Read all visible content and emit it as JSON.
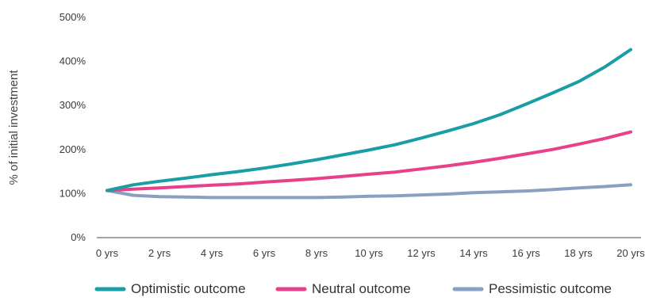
{
  "chart_data": {
    "type": "line",
    "ylabel": "% of initial investment",
    "xlabel": "",
    "ylim": [
      0,
      500
    ],
    "yticks": [
      0,
      100,
      200,
      300,
      400,
      500
    ],
    "ytick_labels": [
      "0%",
      "100%",
      "200%",
      "300%",
      "400%",
      "500%"
    ],
    "xticks": [
      0,
      2,
      4,
      6,
      8,
      10,
      12,
      14,
      16,
      18,
      20
    ],
    "xtick_labels": [
      "0 yrs",
      "2 yrs",
      "4 yrs",
      "6 yrs",
      "8 yrs",
      "10 yrs",
      "12 yrs",
      "14 yrs",
      "16 yrs",
      "18 yrs",
      "20 yrs"
    ],
    "x": [
      0,
      1,
      2,
      3,
      4,
      5,
      6,
      7,
      8,
      9,
      10,
      11,
      12,
      13,
      14,
      15,
      16,
      17,
      18,
      19,
      20
    ],
    "grid": false,
    "legend_position": "bottom",
    "series": [
      {
        "name": "Optimistic outcome",
        "color": "#1a9ea5",
        "values": [
          107,
          120,
          128,
          135,
          143,
          150,
          158,
          167,
          177,
          188,
          199,
          211,
          226,
          242,
          259,
          279,
          303,
          328,
          354,
          387,
          427
        ]
      },
      {
        "name": "Neutral outcome",
        "color": "#e8408a",
        "values": [
          107,
          110,
          113,
          116,
          119,
          122,
          126,
          130,
          134,
          139,
          144,
          149,
          156,
          163,
          171,
          180,
          190,
          200,
          212,
          225,
          240
        ]
      },
      {
        "name": "Pessimistic outcome",
        "color": "#8aa0c0",
        "values": [
          107,
          96,
          93,
          92,
          91,
          91,
          91,
          91,
          91,
          92,
          94,
          95,
          97,
          99,
          102,
          104,
          106,
          109,
          113,
          116,
          120
        ]
      }
    ]
  }
}
